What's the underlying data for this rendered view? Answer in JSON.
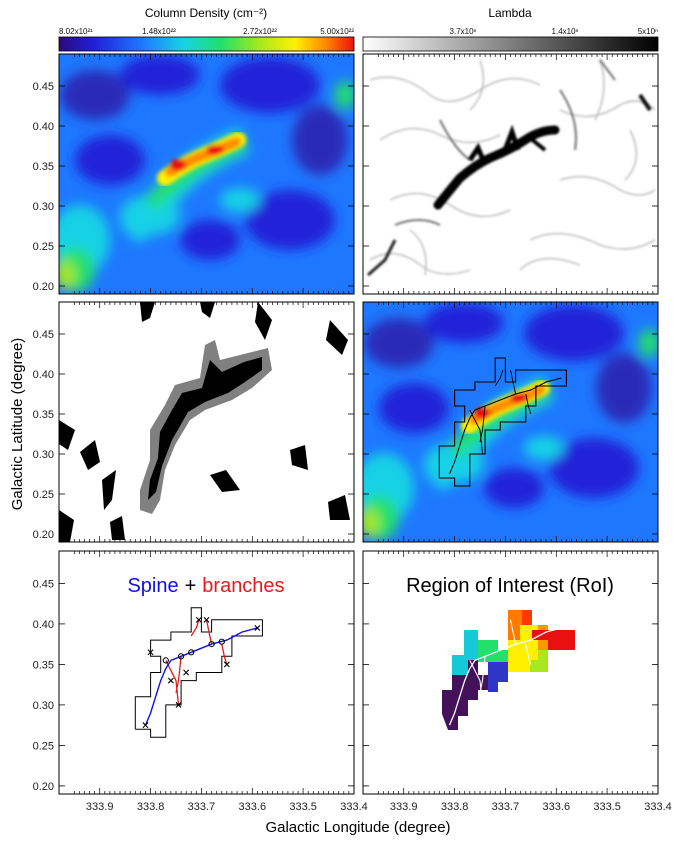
{
  "colors": {
    "spine": "#1010e6",
    "branch": "#e21b1b",
    "outline": "#000000",
    "gray_mask": "#808080",
    "rainbow": [
      "#ff0000",
      "#ff7f00",
      "#ffff00",
      "#00ff00",
      "#00ffff",
      "#0000ff",
      "#4b0082"
    ]
  },
  "colorbars": [
    {
      "title": "Column Density (cm⁻²)",
      "palette": "rainbow",
      "tick_labels": [
        "8.02x10²¹",
        "1.48x10²²",
        "2.72x10²²",
        "5.00x10²²"
      ]
    },
    {
      "title": "Lambda",
      "palette": "grayscale",
      "tick_labels": [
        "3.7x10ⁿ",
        "1.4x10ⁿ",
        "5x10ⁿ"
      ]
    }
  ],
  "annotations": {
    "spine_word": "Spine",
    "plus_word": "+",
    "branches_word": "branches",
    "roi_title": "Region of Interest (RoI)"
  },
  "chart_data": {
    "type": "heatmap",
    "xlabel": "Galactic Longitude (degree)",
    "ylabel": "Galactic Latitude (degree)",
    "xlim": [
      333.98,
      333.4
    ],
    "ylim": [
      0.19,
      0.49
    ],
    "x_ticks": [
      333.9,
      333.8,
      333.7,
      333.6,
      333.5,
      333.4
    ],
    "x_tick_labels": [
      "333.9",
      "333.8",
      "333.7",
      "333.6",
      "333.5",
      "333.4"
    ],
    "y_ticks": [
      0.2,
      0.25,
      0.3,
      0.35,
      0.4,
      0.45
    ],
    "y_tick_labels": [
      "0.20",
      "0.25",
      "0.30",
      "0.35",
      "0.40",
      "0.45"
    ],
    "panels": [
      "Column density map",
      "Lambda map",
      "Binary mask",
      "Column density with RoI outline",
      "Spine + branches",
      "Region of Interest (RoI)"
    ],
    "spine": {
      "l": [
        333.81,
        333.8,
        333.79,
        333.78,
        333.77,
        333.76,
        333.74,
        333.72,
        333.7,
        333.68,
        333.65,
        333.62,
        333.59
      ],
      "b": [
        0.275,
        0.29,
        0.31,
        0.33,
        0.345,
        0.355,
        0.36,
        0.365,
        0.37,
        0.375,
        0.38,
        0.39,
        0.395
      ]
    },
    "branches": [
      {
        "l": [
          333.77,
          333.75,
          333.745
        ],
        "b": [
          0.355,
          0.33,
          0.3
        ]
      },
      {
        "l": [
          333.72,
          333.71,
          333.705
        ],
        "b": [
          0.385,
          0.395,
          0.405
        ]
      },
      {
        "l": [
          333.68,
          333.685,
          333.69
        ],
        "b": [
          0.375,
          0.39,
          0.405
        ]
      },
      {
        "l": [
          333.74,
          333.745,
          333.75
        ],
        "b": [
          0.36,
          0.33,
          0.315
        ]
      },
      {
        "l": [
          333.66,
          333.655,
          333.65
        ],
        "b": [
          0.375,
          0.36,
          0.35
        ]
      }
    ],
    "endpoints": {
      "l": [
        333.81,
        333.59,
        333.8,
        333.745,
        333.705,
        333.69,
        333.65,
        333.76,
        333.73
      ],
      "b": [
        0.275,
        0.395,
        0.365,
        0.3,
        0.405,
        0.405,
        0.35,
        0.33,
        0.34
      ]
    },
    "junctions": {
      "l": [
        333.77,
        333.74,
        333.72,
        333.68,
        333.66
      ],
      "b": [
        0.355,
        0.36,
        0.365,
        0.375,
        0.378
      ]
    },
    "roi_outline": {
      "l": [
        333.83,
        333.83,
        333.8,
        333.8,
        333.78,
        333.78,
        333.8,
        333.8,
        333.76,
        333.76,
        333.72,
        333.72,
        333.7,
        333.7,
        333.68,
        333.68,
        333.58,
        333.58,
        333.64,
        333.64,
        333.66,
        333.66,
        333.71,
        333.71,
        333.74,
        333.74,
        333.77,
        333.77,
        333.8,
        333.8
      ],
      "b": [
        0.27,
        0.31,
        0.31,
        0.34,
        0.34,
        0.36,
        0.36,
        0.38,
        0.38,
        0.39,
        0.39,
        0.42,
        0.42,
        0.39,
        0.39,
        0.405,
        0.405,
        0.385,
        0.385,
        0.36,
        0.36,
        0.34,
        0.34,
        0.33,
        0.33,
        0.3,
        0.3,
        0.26,
        0.26,
        0.27
      ]
    }
  }
}
